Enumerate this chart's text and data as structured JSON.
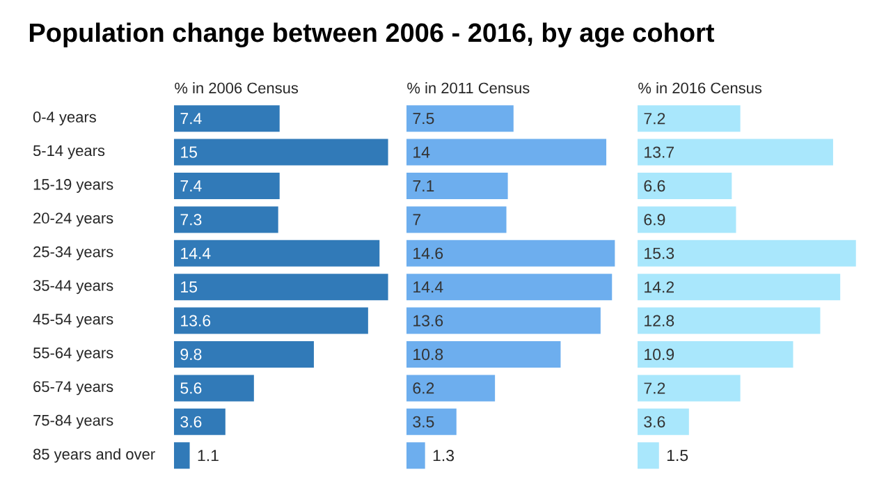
{
  "chart_data": [
    {
      "type": "bar",
      "orientation": "horizontal",
      "title": "Population change between 2006 - 2016, by age cohort",
      "subtitle": "% in 2006 Census",
      "categories": [
        "0-4 years",
        "5-14 years",
        "15-19 years",
        "20-24 years",
        "25-34 years",
        "35-44 years",
        "45-54 years",
        "55-64 years",
        "65-74 years",
        "75-84 years",
        "85 years and over"
      ],
      "values": [
        7.4,
        15,
        7.4,
        7.3,
        14.4,
        15,
        13.6,
        9.8,
        5.6,
        3.6,
        1.1
      ],
      "color": "#317ab8",
      "data_labels": true,
      "tick_labels": "y"
    },
    {
      "type": "bar",
      "orientation": "horizontal",
      "subtitle": "% in 2011 Census",
      "categories": [
        null,
        null,
        null,
        null,
        null,
        null,
        null,
        null,
        null,
        null,
        null
      ],
      "values": [
        7.5,
        14,
        7.1,
        7,
        14.6,
        14.4,
        13.6,
        10.8,
        6.2,
        3.5,
        1.3
      ],
      "color": "#6daeee",
      "data_labels": true,
      "tick_labels": false
    },
    {
      "type": "bar",
      "orientation": "horizontal",
      "subtitle": "% in 2016 Census",
      "categories": [
        null,
        null,
        null,
        null,
        null,
        null,
        null,
        null,
        null,
        null,
        null
      ],
      "values": [
        7.2,
        13.7,
        6.6,
        6.9,
        15.3,
        14.2,
        12.8,
        10.9,
        7.2,
        3.6,
        1.5
      ],
      "color": "#a9e7fc",
      "data_labels": true,
      "tick_labels": false
    }
  ]
}
